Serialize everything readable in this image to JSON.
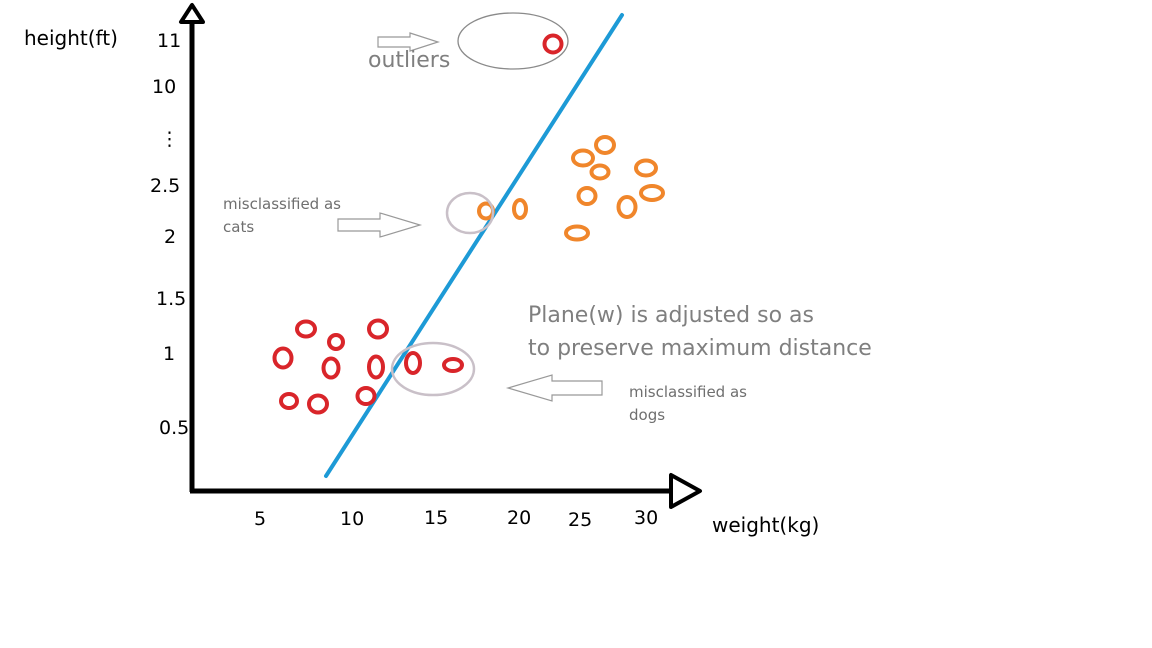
{
  "axes": {
    "y_label": "height(ft)",
    "x_label": "weight(kg)",
    "y_ticks": [
      "11",
      "10",
      "⋮",
      "2.5",
      "2",
      "1.5",
      "1",
      "0.5"
    ],
    "x_ticks": [
      "5",
      "10",
      "15",
      "20",
      "25",
      "30"
    ]
  },
  "annotations": {
    "outliers": "outliers",
    "misclassified_cats_line1": "misclassified as",
    "misclassified_cats_line2": "cats",
    "misclassified_dogs_line1": "misclassified as",
    "misclassified_dogs_line2": "dogs",
    "plane_line1": "Plane(w) is adjusted so as",
    "plane_line2": "to preserve maximum distance"
  },
  "colors": {
    "axis": "#000000",
    "red_class": "#d9252a",
    "orange_class": "#f0862b",
    "plane": "#1d9ad6",
    "highlight_circle": "#c9c0c8",
    "annotation_text": "#7f7f7f"
  },
  "icons": [
    "arrow-right-outline-icon",
    "arrow-left-outline-icon",
    "axis-arrowhead-icon"
  ]
}
